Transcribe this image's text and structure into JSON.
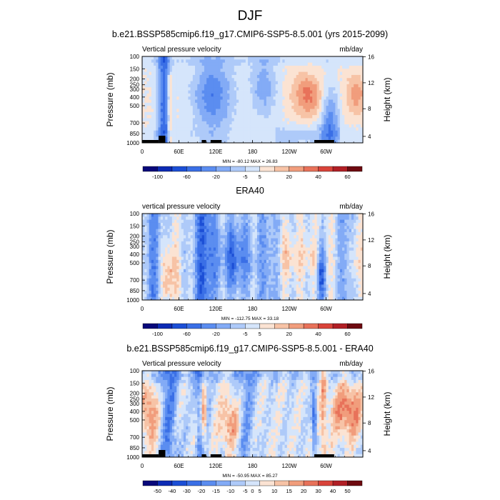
{
  "page": {
    "title": "DJF"
  },
  "colors": {
    "scale": [
      "#08087a",
      "#0d2bb4",
      "#1c4fd6",
      "#3a6fe6",
      "#5b8df0",
      "#83abf6",
      "#aecaf9",
      "#d5e5fb",
      "#fbe3d3",
      "#f7c3a6",
      "#f19d7c",
      "#e8725a",
      "#d9433a",
      "#b11f25",
      "#6e0a10"
    ]
  },
  "chart_data": [
    {
      "type": "heatmap",
      "title": "b.e21.BSSP585cmip6.f19_g17.CMIP6-SSP5-8.5.001 (yrs 2015-2099)",
      "left_label": "Vertical pressure velocity",
      "right_label": "mb/day",
      "ylabel": "Pressure (mb)",
      "ylabel_right": "Height (km)",
      "y_ticks": [
        "100",
        "150",
        "200",
        "250",
        "300",
        "400",
        "500",
        "700",
        "850",
        "1000"
      ],
      "y_ticks_right": [
        "16",
        "12",
        "8",
        "4"
      ],
      "x_ticks": [
        "0",
        "60E",
        "120E",
        "180",
        "120W",
        "60W"
      ],
      "stats": "MIN = -80.12  MAX = 26.83",
      "colorbar_labels": [
        "-100",
        "-60",
        "-20",
        "-5",
        "5",
        "20",
        "40",
        "60"
      ],
      "min": -80.12,
      "max": 26.83
    },
    {
      "type": "heatmap",
      "title": "ERA40",
      "left_label": "vertical pressure velocity",
      "right_label": "mb/day",
      "ylabel": "Pressure (mb)",
      "ylabel_right": "Height (km)",
      "y_ticks": [
        "100",
        "150",
        "200",
        "250",
        "300",
        "400",
        "500",
        "700",
        "850",
        "1000"
      ],
      "y_ticks_right": [
        "16",
        "12",
        "8",
        "4"
      ],
      "x_ticks": [
        "0",
        "60E",
        "120E",
        "180",
        "120W",
        "60W"
      ],
      "stats": "MIN = -112.75  MAX = 33.18",
      "colorbar_labels": [
        "-100",
        "-60",
        "-20",
        "-5",
        "5",
        "20",
        "40",
        "60"
      ],
      "min": -112.75,
      "max": 33.18
    },
    {
      "type": "heatmap",
      "title": "b.e21.BSSP585cmip6.f19_g17.CMIP6-SSP5-8.5.001 - ERA40",
      "left_label": "Vertical pressure velocity",
      "right_label": "mb/day",
      "ylabel": "Pressure (mb)",
      "ylabel_right": "Height (km)",
      "y_ticks": [
        "100",
        "150",
        "200",
        "250",
        "300",
        "400",
        "500",
        "700",
        "850",
        "1000"
      ],
      "y_ticks_right": [
        "16",
        "12",
        "8",
        "4"
      ],
      "x_ticks": [
        "0",
        "60E",
        "120E",
        "180",
        "120W",
        "60W"
      ],
      "stats": "MIN = -50.95  MAX = 85.27",
      "colorbar_labels": [
        "-50",
        "-40",
        "-30",
        "-20",
        "-15",
        "-10",
        "-5",
        "0",
        "5",
        "10",
        "15",
        "20",
        "30",
        "40",
        "50"
      ],
      "min": -50.95,
      "max": 85.27
    }
  ]
}
